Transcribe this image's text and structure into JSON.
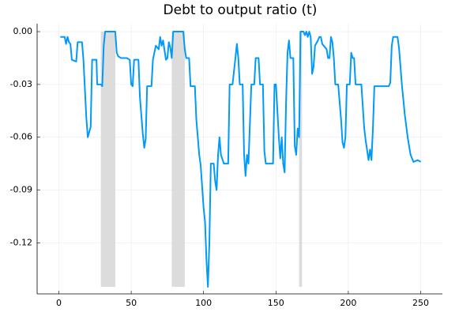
{
  "chart_data": {
    "type": "line",
    "title": "Debt to output ratio (t)",
    "x": [
      1,
      4,
      5,
      6,
      7,
      8,
      9,
      12,
      13,
      16,
      17,
      19,
      20,
      22,
      23,
      26,
      26.5,
      29,
      30,
      31,
      32,
      39,
      40,
      41,
      43,
      47,
      49,
      50,
      51,
      52,
      55,
      56,
      58,
      59,
      60,
      61,
      64,
      65,
      67,
      69,
      70,
      71,
      72,
      74,
      75,
      76,
      77,
      78,
      79,
      86,
      87,
      88,
      90,
      91,
      94,
      95,
      97,
      98,
      100,
      101,
      102,
      103,
      104,
      105,
      107,
      108,
      109,
      110,
      111,
      112,
      114,
      117,
      118,
      120,
      122,
      123,
      124,
      125,
      127,
      128,
      129,
      130,
      131,
      133,
      135,
      136,
      138,
      139,
      141,
      142,
      143,
      148,
      149,
      150,
      152,
      153,
      154,
      155,
      156,
      157,
      158,
      159,
      160,
      162,
      163,
      164,
      165,
      166,
      167,
      169,
      170,
      171,
      172,
      173,
      174,
      175,
      176,
      177,
      179,
      180,
      181,
      182,
      183,
      185,
      186,
      187,
      188,
      189,
      190,
      191,
      193,
      195,
      196,
      197,
      198,
      199,
      201,
      202,
      203,
      204,
      205,
      209,
      211,
      212,
      214,
      215,
      216,
      217,
      218,
      228,
      229,
      230,
      231,
      234,
      235,
      237,
      239,
      241,
      243,
      245,
      248,
      250
    ],
    "series": [
      {
        "name": "Debt to output ratio",
        "color": "#009af9",
        "values": [
          -0.003,
          -0.003,
          -0.007,
          -0.003,
          -0.006,
          -0.007,
          -0.016,
          -0.017,
          -0.006,
          -0.006,
          -0.016,
          -0.049,
          -0.06,
          -0.054,
          -0.016,
          -0.016,
          -0.03,
          -0.03,
          -0.031,
          -0.008,
          0,
          0,
          -0.012,
          -0.014,
          -0.015,
          -0.015,
          -0.016,
          -0.03,
          -0.031,
          -0.016,
          -0.016,
          -0.037,
          -0.058,
          -0.066,
          -0.061,
          -0.031,
          -0.031,
          -0.016,
          -0.008,
          -0.01,
          -0.003,
          -0.008,
          -0.005,
          -0.016,
          -0.015,
          -0.006,
          -0.009,
          -0.015,
          0,
          0,
          -0.01,
          -0.015,
          -0.015,
          -0.031,
          -0.031,
          -0.05,
          -0.07,
          -0.076,
          -0.1,
          -0.108,
          -0.13,
          -0.145,
          -0.12,
          -0.075,
          -0.075,
          -0.085,
          -0.09,
          -0.07,
          -0.06,
          -0.07,
          -0.075,
          -0.075,
          -0.03,
          -0.03,
          -0.015,
          -0.007,
          -0.015,
          -0.03,
          -0.03,
          -0.07,
          -0.082,
          -0.07,
          -0.075,
          -0.03,
          -0.03,
          -0.015,
          -0.015,
          -0.03,
          -0.03,
          -0.068,
          -0.075,
          -0.075,
          -0.03,
          -0.03,
          -0.06,
          -0.072,
          -0.06,
          -0.075,
          -0.08,
          -0.04,
          -0.012,
          -0.005,
          -0.015,
          -0.015,
          -0.065,
          -0.07,
          -0.055,
          -0.06,
          0,
          0,
          -0.002,
          0,
          -0.003,
          0,
          -0.003,
          -0.024,
          -0.02,
          -0.008,
          -0.005,
          -0.003,
          -0.003,
          -0.007,
          -0.008,
          -0.01,
          -0.015,
          -0.015,
          -0.003,
          -0.006,
          -0.015,
          -0.03,
          -0.03,
          -0.05,
          -0.063,
          -0.066,
          -0.06,
          -0.03,
          -0.03,
          -0.012,
          -0.015,
          -0.015,
          -0.03,
          -0.03,
          -0.055,
          -0.062,
          -0.073,
          -0.067,
          -0.073,
          -0.055,
          -0.031,
          -0.031,
          -0.029,
          -0.008,
          -0.003,
          -0.003,
          -0.009,
          -0.03,
          -0.047,
          -0.06,
          -0.07,
          -0.074,
          -0.073,
          -0.074
        ]
      }
    ],
    "shaded_regions": [
      [
        29,
        39
      ],
      [
        78,
        87
      ],
      [
        166,
        168
      ]
    ],
    "shade_color": "#d3d3d3",
    "xlim": [
      -15,
      265
    ],
    "xticks": [
      0,
      50,
      100,
      150,
      200,
      250
    ],
    "ylim": [
      -0.149,
      0.0045
    ],
    "yticks": [
      {
        "value": 0,
        "label": "0.00"
      },
      {
        "value": -0.03,
        "label": "-0.03"
      },
      {
        "value": -0.06,
        "label": "-0.06"
      },
      {
        "value": -0.09,
        "label": "-0.09"
      },
      {
        "value": -0.12,
        "label": "-0.12"
      }
    ],
    "grid": true
  }
}
